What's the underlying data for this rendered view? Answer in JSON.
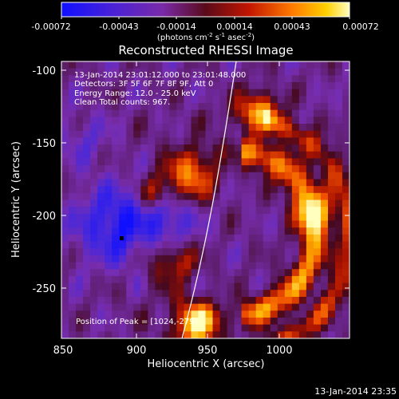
{
  "colorbar": {
    "ticks": [
      "-0.00072",
      "-0.00043",
      "-0.00014",
      "0.00014",
      "0.00043",
      "0.00072"
    ],
    "unit_main": "(photons cm",
    "unit_e1": "-2",
    "unit_s": " s",
    "unit_e2": "-1",
    "unit_asec": " asec",
    "unit_e3": "-2",
    "unit_close": ")"
  },
  "plot": {
    "title": "Reconstructed RHESSI Image",
    "info": [
      "13-Jan-2014 23:01:12.000 to 23:01:48.000",
      "Detectors: 3F 5F 6F 7F 8F 9F, Att 0",
      "Energy Range: 12.0 - 25.0 keV",
      "Clean     Total counts: 967."
    ],
    "peak": "Position of Peak = [1024,-279]",
    "xlabel": "Heliocentric X (arcsec)",
    "ylabel": "Heliocentric Y (arcsec)",
    "xticks": [
      "850",
      "900",
      "950",
      "1000"
    ],
    "yticks": [
      "-100",
      "-150",
      "-200",
      "-250"
    ],
    "xrange": [
      850,
      1040
    ],
    "yrange": [
      -285,
      -95
    ]
  },
  "footer": {
    "timestamp": "13-Jan-2014 23:35"
  },
  "colors": {
    "background": "#000000",
    "text": "#ffffff",
    "frame": "#ffffff"
  },
  "icons": {
    "limb_curve": "solar-limb-line",
    "peak_marker": "peak-dot"
  }
}
